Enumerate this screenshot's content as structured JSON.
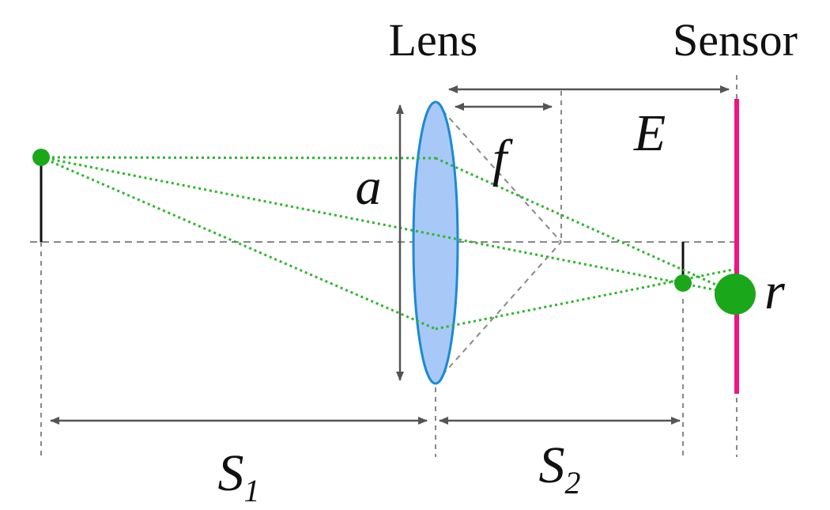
{
  "labels": {
    "lens": "Lens",
    "sensor": "Sensor",
    "focal_length": "f",
    "aperture": "a",
    "sensor_distance": "E",
    "blur_radius": "r",
    "object_distance": "S",
    "object_distance_sub": "1",
    "image_distance": "S",
    "image_distance_sub": "2"
  },
  "colors": {
    "lens_fill": "#a8c8f8",
    "lens_stroke": "#1a8ad4",
    "point": "#1aa81a",
    "ray": "#2db52d",
    "sensor": "#f0157f",
    "construction_line": "#888888",
    "dimension_arrow": "#555555"
  }
}
